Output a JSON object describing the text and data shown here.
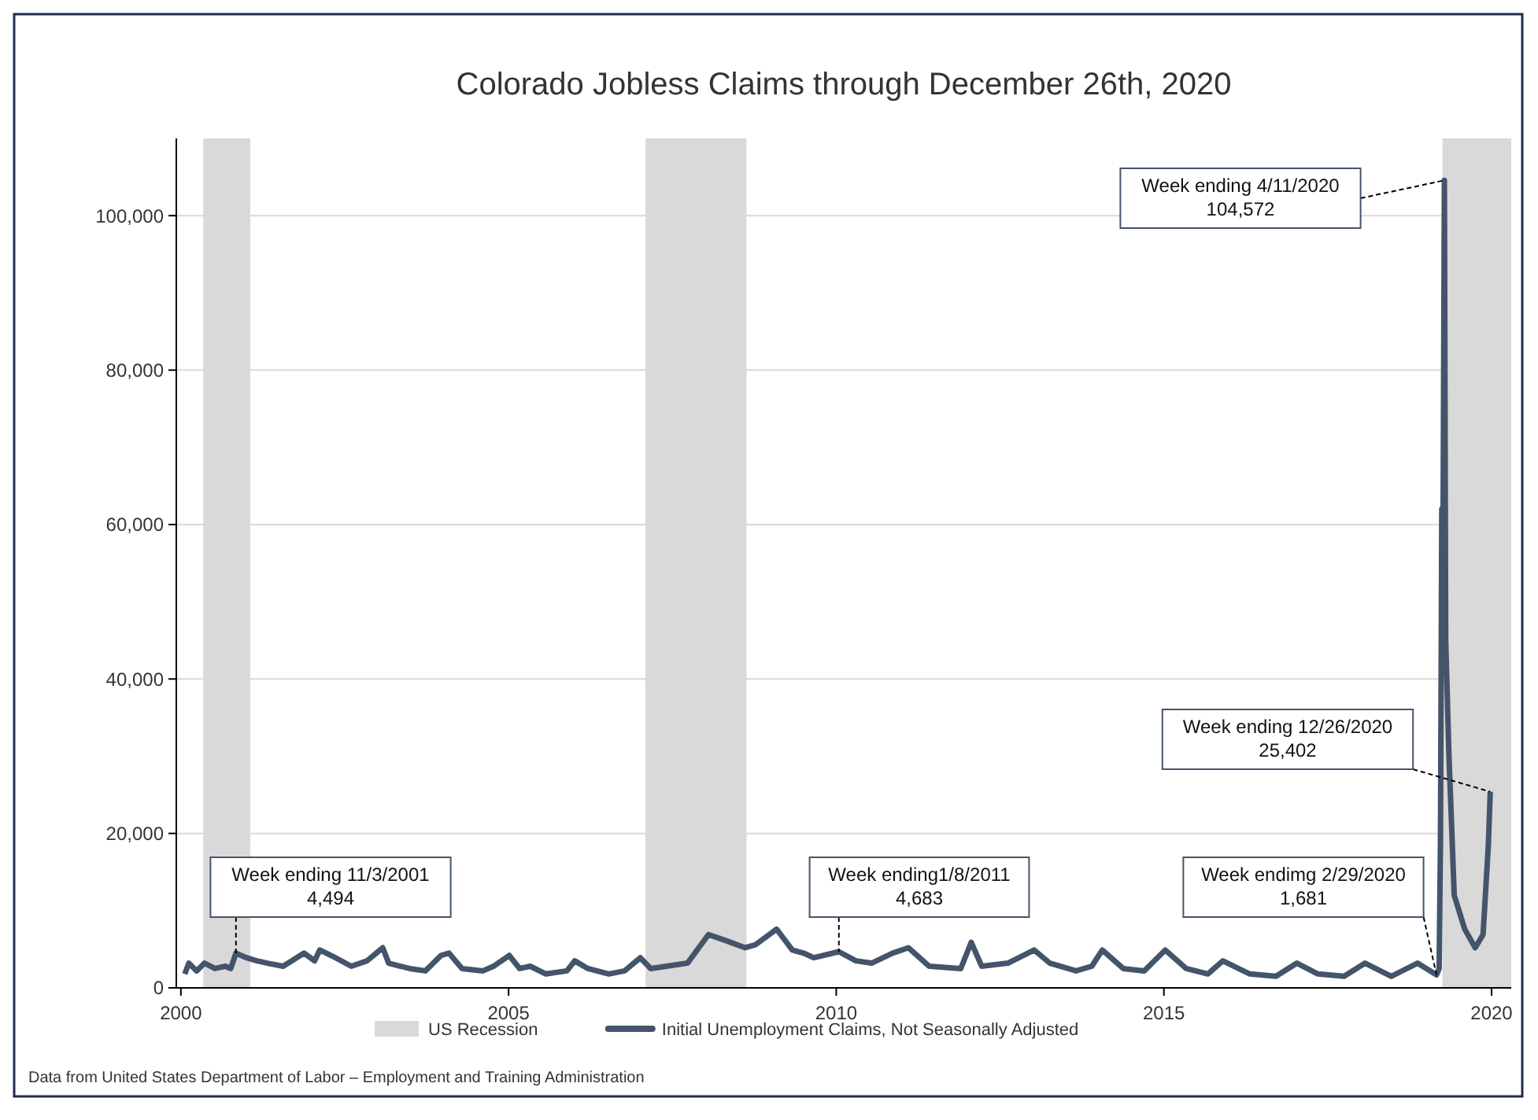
{
  "chart_data": {
    "type": "line",
    "title": "Colorado Jobless Claims through December 26th, 2020",
    "xlim": [
      1999.93,
      2020.3
    ],
    "xticks": [
      2000,
      2005,
      2010,
      2015,
      2020
    ],
    "ylim": [
      0,
      110000
    ],
    "yticks": [
      {
        "value": 0,
        "label": "0"
      },
      {
        "value": 20000,
        "label": "20,000"
      },
      {
        "value": 40000,
        "label": "40,000"
      },
      {
        "value": 60000,
        "label": "60,000"
      },
      {
        "value": 80000,
        "label": "80,000"
      },
      {
        "value": 100000,
        "label": "100,000"
      }
    ],
    "grid": "y",
    "legend": "bottom",
    "bands": [
      {
        "axis": "x",
        "from": 2000.34,
        "to": 2001.06,
        "label": "US Recession",
        "color": "#d9d9d9"
      },
      {
        "axis": "x",
        "from": 2007.09,
        "to": 2008.63,
        "color": "#d9d9d9"
      },
      {
        "axis": "x",
        "from": 2019.25,
        "to": 2020.3,
        "color": "#d9d9d9"
      }
    ],
    "series": [
      {
        "name": "Initial Unemployment Claims, Not Seasonally Adjusted",
        "color": "#44546a",
        "x": [
          2000.06,
          2000.12,
          2000.24,
          2000.36,
          2000.52,
          2000.68,
          2000.76,
          2000.84,
          2001.0,
          2001.16,
          2001.32,
          2001.56,
          2001.88,
          2002.04,
          2002.12,
          2002.36,
          2002.6,
          2002.84,
          2003.08,
          2003.17,
          2003.49,
          2003.73,
          2003.97,
          2004.09,
          2004.29,
          2004.61,
          2004.77,
          2005.01,
          2005.17,
          2005.33,
          2005.57,
          2005.89,
          2006.01,
          2006.21,
          2006.53,
          2006.77,
          2007.01,
          2007.17,
          2007.41,
          2007.73,
          2008.05,
          2008.29,
          2008.61,
          2008.77,
          2009.09,
          2009.33,
          2009.5,
          2009.66,
          2010.04,
          2010.3,
          2010.54,
          2010.86,
          2011.1,
          2011.42,
          2011.9,
          2012.06,
          2012.22,
          2012.62,
          2013.02,
          2013.26,
          2013.66,
          2013.9,
          2014.06,
          2014.38,
          2014.7,
          2015.02,
          2015.34,
          2015.67,
          2015.9,
          2016.31,
          2016.71,
          2017.03,
          2017.35,
          2017.75,
          2018.07,
          2018.47,
          2018.87,
          2019.16,
          2019.2,
          2019.22,
          2019.24,
          2019.26,
          2019.28,
          2019.3,
          2019.35,
          2019.43,
          2019.59,
          2019.75,
          2019.87,
          2019.95,
          2019.98
        ],
        "values": [
          1800,
          3200,
          2200,
          3200,
          2500,
          2800,
          2500,
          4494,
          3900,
          3500,
          3200,
          2800,
          4500,
          3500,
          4900,
          3900,
          2800,
          3500,
          5200,
          3200,
          2500,
          2200,
          4200,
          4500,
          2500,
          2200,
          2800,
          4200,
          2500,
          2800,
          1800,
          2200,
          3500,
          2500,
          1800,
          2200,
          3900,
          2500,
          2800,
          3200,
          6900,
          6200,
          5200,
          5600,
          7600,
          4900,
          4500,
          3900,
          4683,
          3500,
          3200,
          4500,
          5200,
          2800,
          2500,
          5900,
          2800,
          3200,
          4900,
          3200,
          2200,
          2800,
          4900,
          2500,
          2200,
          4900,
          2500,
          1800,
          3500,
          1800,
          1500,
          3200,
          1800,
          1500,
          3200,
          1500,
          3200,
          1681,
          2500,
          19000,
          62000,
          60000,
          104572,
          45000,
          30000,
          12000,
          7600,
          5200,
          6900,
          18400,
          25402
        ]
      }
    ],
    "annotations": [
      {
        "text": "Week ending 11/3/2001\n4,494",
        "x": 2000.84,
        "y": 4494
      },
      {
        "text": "Week ending1/8/2011\n4,683",
        "x": 2010.04,
        "y": 4683
      },
      {
        "text": "Week endimg 2/29/2020\n1,681",
        "x": 2019.16,
        "y": 1681
      },
      {
        "text": "Week ending 4/11/2020\n104,572",
        "x": 2019.28,
        "y": 104572
      },
      {
        "text": "Week ending 12/26/2020\n25,402",
        "x": 2019.98,
        "y": 25402
      },
      "Data from United States Department of Labor – Employment and Training Administration"
    ]
  }
}
